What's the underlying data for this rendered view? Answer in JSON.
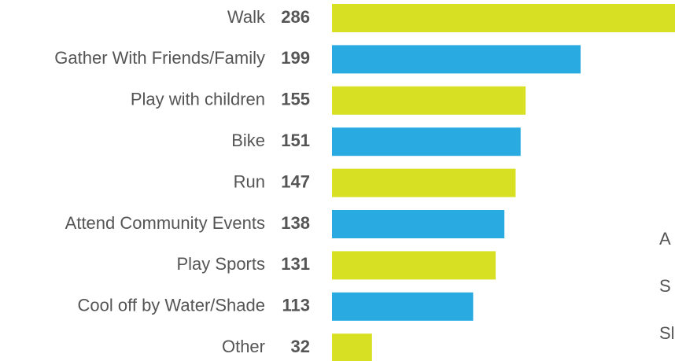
{
  "chart_data": {
    "type": "bar",
    "orientation": "horizontal",
    "categories": [
      "Walk",
      "Gather With Friends/Family",
      "Play with children",
      "Bike",
      "Run",
      "Attend Community Events",
      "Play Sports",
      "Cool off by Water/Shade",
      "Other"
    ],
    "values": [
      286,
      199,
      155,
      151,
      147,
      138,
      131,
      113,
      32
    ],
    "colors": [
      "#d7e022",
      "#29abe2",
      "#d7e022",
      "#29abe2",
      "#d7e022",
      "#29abe2",
      "#d7e022",
      "#29abe2",
      "#d7e022"
    ],
    "annotations": [
      "A",
      "S",
      "Sl"
    ]
  }
}
